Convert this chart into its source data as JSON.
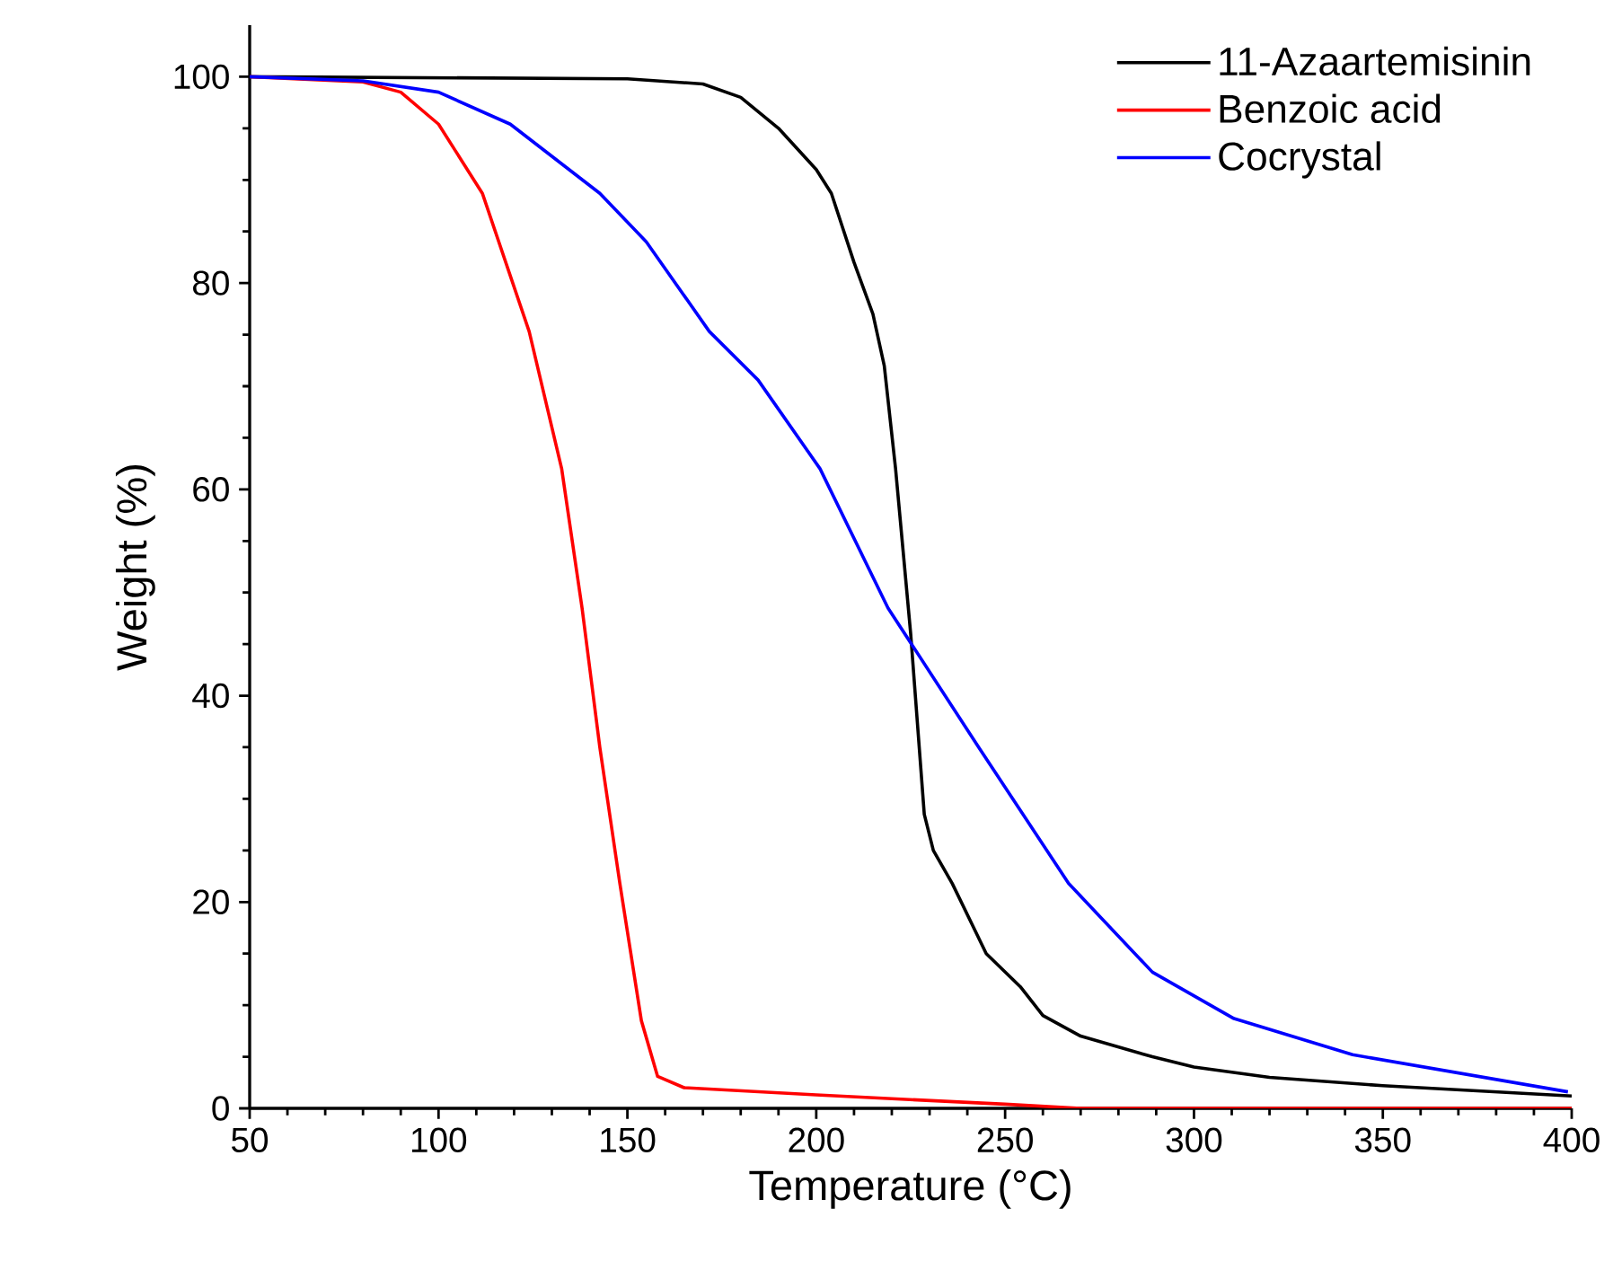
{
  "chart_data": {
    "type": "line",
    "xlabel": "Temperature (°C)",
    "ylabel": "Weight (%)",
    "xlim": [
      50,
      400
    ],
    "ylim": [
      0,
      105
    ],
    "xticks": [
      50,
      100,
      150,
      200,
      250,
      300,
      350,
      400
    ],
    "yticks": [
      0,
      20,
      40,
      60,
      80,
      100
    ],
    "grid": false,
    "legend": "top right",
    "marker": "none",
    "line_style": "solid",
    "series": [
      {
        "name": "11-Azaartemisinin",
        "color": "#000000",
        "x": [
          50,
          150,
          170,
          180,
          190,
          200,
          204,
          210,
          215,
          218,
          221,
          223,
          225,
          228.6,
          231,
          236,
          245,
          254,
          260,
          270,
          289,
          300,
          320,
          350,
          400
        ],
        "values": [
          100,
          99.8,
          99.3,
          98,
          95,
          91,
          88.7,
          82,
          77,
          72,
          62,
          54,
          46,
          28.5,
          25,
          21.8,
          15,
          11.8,
          9,
          7,
          5,
          4,
          3,
          2.2,
          1.2
        ]
      },
      {
        "name": "Benzoic acid",
        "color": "#ff0000",
        "x": [
          50,
          80,
          90,
          100,
          111.6,
          124,
          132.6,
          138,
          142.7,
          148,
          153.7,
          158,
          165,
          200,
          250,
          270,
          400
        ],
        "values": [
          100,
          99.5,
          98.5,
          95.4,
          88.7,
          75.3,
          62,
          48.5,
          35,
          21.8,
          8.5,
          3.1,
          2,
          1.3,
          0.4,
          0,
          0
        ]
      },
      {
        "name": "Cocrystal",
        "color": "#0000ff",
        "x": [
          50,
          80,
          100,
          119,
          142.7,
          155,
          171.7,
          184.6,
          201,
          219,
          243,
          266.8,
          289,
          310.6,
          342,
          399
        ],
        "values": [
          100,
          99.6,
          98.5,
          95.4,
          88.7,
          84,
          75.3,
          70.6,
          62,
          48.5,
          35,
          21.8,
          13.2,
          8.7,
          5.2,
          1.6
        ]
      }
    ]
  }
}
